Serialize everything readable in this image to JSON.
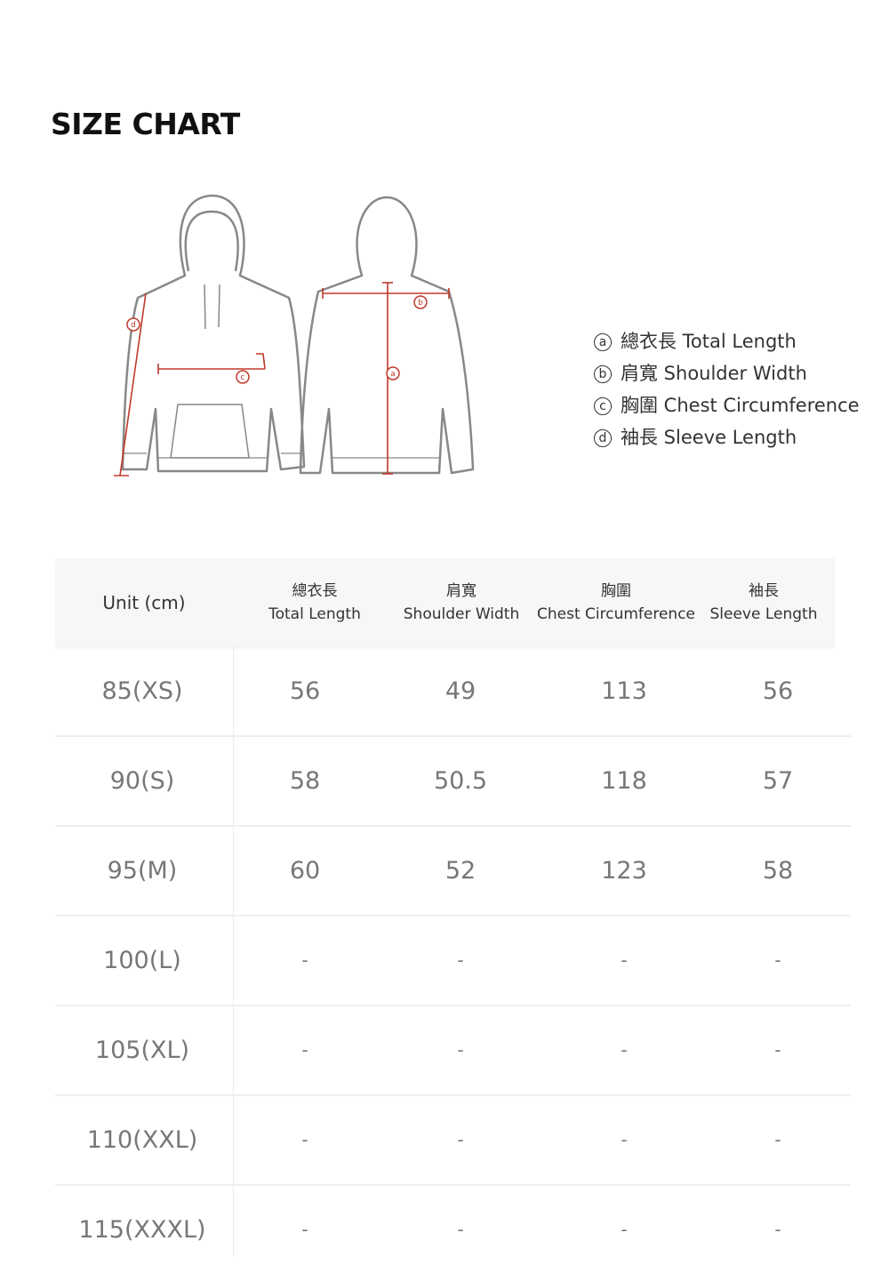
{
  "title": "SIZE CHART",
  "legend": [
    {
      "mark": "a",
      "label": "總衣長 Total Length"
    },
    {
      "mark": "b",
      "label": "肩寬 Shoulder Width"
    },
    {
      "mark": "c",
      "label": "胸圍 Chest Circumference"
    },
    {
      "mark": "d",
      "label": "袖長 Sleeve Length"
    }
  ],
  "diagram": {
    "marks": [
      "a",
      "b",
      "c",
      "d"
    ],
    "accent_color": "#c0392b",
    "outline_color": "#888888"
  },
  "table": {
    "unit_header": "Unit (cm)",
    "columns": [
      {
        "zh": "總衣長",
        "en": "Total Length"
      },
      {
        "zh": "肩寬",
        "en": "Shoulder Width"
      },
      {
        "zh": "胸圍",
        "en": "Chest Circumference"
      },
      {
        "zh": "袖長",
        "en": "Sleeve Length"
      }
    ],
    "rows": [
      {
        "size": "85(XS)",
        "values": [
          "56",
          "49",
          "113",
          "56"
        ]
      },
      {
        "size": "90(S)",
        "values": [
          "58",
          "50.5",
          "118",
          "57"
        ]
      },
      {
        "size": "95(M)",
        "values": [
          "60",
          "52",
          "123",
          "58"
        ]
      },
      {
        "size": "100(L)",
        "values": [
          "-",
          "-",
          "-",
          "-"
        ]
      },
      {
        "size": "105(XL)",
        "values": [
          "-",
          "-",
          "-",
          "-"
        ]
      },
      {
        "size": "110(XXL)",
        "values": [
          "-",
          "-",
          "-",
          "-"
        ]
      },
      {
        "size": "115(XXXL)",
        "values": [
          "-",
          "-",
          "-",
          "-"
        ]
      }
    ]
  }
}
